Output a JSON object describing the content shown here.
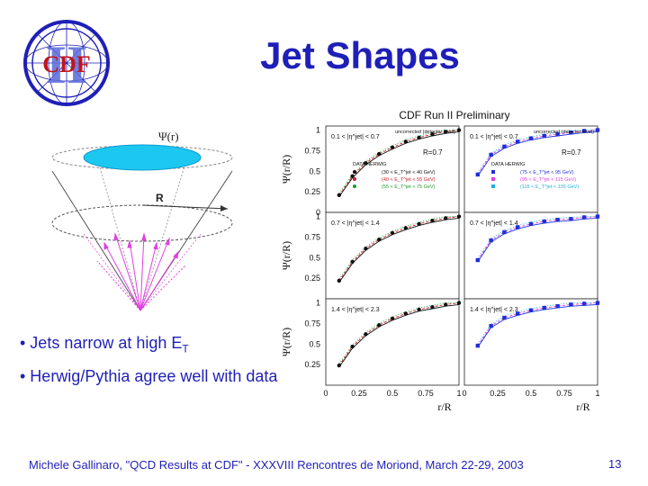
{
  "slide": {
    "title": "Jet Shapes",
    "logo_text": "CDF",
    "logo_numeral": "II",
    "bullets": [
      {
        "text": "• Jets narrow at high E",
        "sub": "T"
      },
      {
        "text": "• Herwig/Pythia agree well with data"
      }
    ],
    "footer": "Michele Gallinaro, \"QCD Results at CDF\" - XXXVIII Rencontres de Moriond, March 22-29, 2003",
    "page_number": "13"
  },
  "cone_diagram": {
    "psi_label": "Ψ(r)",
    "r_label": "R"
  },
  "colors": {
    "title_blue": "#1f1fb8",
    "cyan_disc": "#1cc8f0",
    "magenta": "#e040e0",
    "data_black": "#111111"
  },
  "chart_data": {
    "type": "line",
    "title": "CDF Run II Preliminary",
    "xlabel": "r/R",
    "ylabel": "Ψ(r/R)",
    "xlim": [
      0,
      1
    ],
    "ylim": [
      0,
      1.05
    ],
    "x_ticks": [
      "0",
      "0.25",
      "0.5",
      "0.75",
      "1"
    ],
    "y_ticks": [
      "0",
      "0.25",
      "0.5",
      "0.75",
      "1"
    ],
    "panels": [
      {
        "row": 0,
        "col": 0,
        "note": "uncorrected (detector level)",
        "eta": "0.1 < |η^jet| < 0.7",
        "rlabel": "R=0.7",
        "legend_title": "DATA  HERWIG",
        "legend": [
          "(30 < E_T^jet < 40 GeV)",
          "(40 < E_T^jet < 55 GeV)",
          "(55 < E_T^jet < 75 GeV)"
        ],
        "x": [
          0.1,
          0.2,
          0.3,
          0.4,
          0.5,
          0.6,
          0.7,
          0.8,
          0.9,
          1.0
        ],
        "y": [
          0.21,
          0.44,
          0.6,
          0.71,
          0.79,
          0.86,
          0.91,
          0.95,
          0.98,
          1.0
        ]
      },
      {
        "row": 0,
        "col": 1,
        "note": "uncorrected (detector level)",
        "eta": "0.1 < |η^jet| < 0.7",
        "rlabel": "R=0.7",
        "legend_title": "DATA  HERWIG",
        "legend": [
          "(75 < E_T^jet < 95 GeV)",
          "(95 < E_T^jet < 115 GeV)",
          "(115 < E_T^jet < 135 GeV)"
        ],
        "x": [
          0.1,
          0.2,
          0.3,
          0.4,
          0.5,
          0.6,
          0.7,
          0.8,
          0.9,
          1.0
        ],
        "y": [
          0.46,
          0.7,
          0.8,
          0.86,
          0.9,
          0.93,
          0.95,
          0.97,
          0.99,
          1.0
        ]
      },
      {
        "row": 1,
        "col": 0,
        "eta": "0.7 < |η^jet| < 1.4",
        "x": [
          0.1,
          0.2,
          0.3,
          0.4,
          0.5,
          0.6,
          0.7,
          0.8,
          0.9,
          1.0
        ],
        "y": [
          0.22,
          0.45,
          0.61,
          0.72,
          0.8,
          0.86,
          0.91,
          0.95,
          0.98,
          1.0
        ]
      },
      {
        "row": 1,
        "col": 1,
        "eta": "0.7 < |η^jet| < 1.4",
        "x": [
          0.1,
          0.2,
          0.3,
          0.4,
          0.5,
          0.6,
          0.7,
          0.8,
          0.9,
          1.0
        ],
        "y": [
          0.47,
          0.71,
          0.81,
          0.87,
          0.91,
          0.94,
          0.96,
          0.97,
          0.99,
          1.0
        ]
      },
      {
        "row": 2,
        "col": 0,
        "eta": "1.4 < |η^jet| < 2.3",
        "x": [
          0.1,
          0.2,
          0.3,
          0.4,
          0.5,
          0.6,
          0.7,
          0.8,
          0.9,
          1.0
        ],
        "y": [
          0.24,
          0.47,
          0.62,
          0.73,
          0.81,
          0.87,
          0.92,
          0.95,
          0.98,
          1.0
        ]
      },
      {
        "row": 2,
        "col": 1,
        "eta": "1.4 < |η^jet| < 2.3",
        "x": [
          0.1,
          0.2,
          0.3,
          0.4,
          0.5,
          0.6,
          0.7,
          0.8,
          0.9,
          1.0
        ],
        "y": [
          0.48,
          0.72,
          0.82,
          0.87,
          0.91,
          0.94,
          0.96,
          0.98,
          0.99,
          1.0
        ]
      }
    ]
  }
}
